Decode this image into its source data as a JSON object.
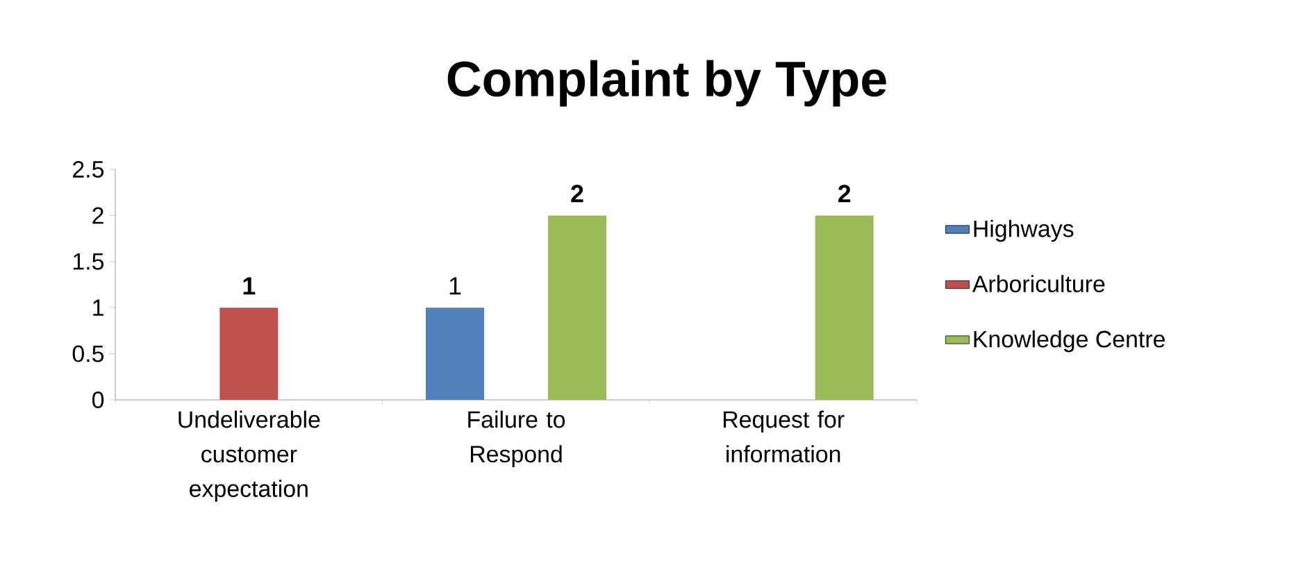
{
  "chart_data": {
    "type": "bar",
    "title": "Complaint by Type",
    "categories": [
      "Undeliverable customer expectation",
      "Failure to Respond",
      "Request for information"
    ],
    "series": [
      {
        "name": "Highways",
        "color": "#4f81bd",
        "values": [
          null,
          1,
          null
        ],
        "value_labels": [
          null,
          "1",
          null
        ]
      },
      {
        "name": "Arboriculture",
        "color": "#c0504d",
        "values": [
          1,
          null,
          null
        ],
        "value_labels": [
          "**1**",
          null,
          null
        ]
      },
      {
        "name": "Knowledge Centre",
        "color": "#9bbb59",
        "values": [
          null,
          2,
          2
        ],
        "value_labels": [
          null,
          "**2**",
          "**2**"
        ]
      }
    ],
    "ylim": [
      0,
      2.5
    ],
    "yticks": [
      0,
      0.5,
      1,
      1.5,
      2,
      2.5
    ],
    "grid": false,
    "legend": "right"
  }
}
